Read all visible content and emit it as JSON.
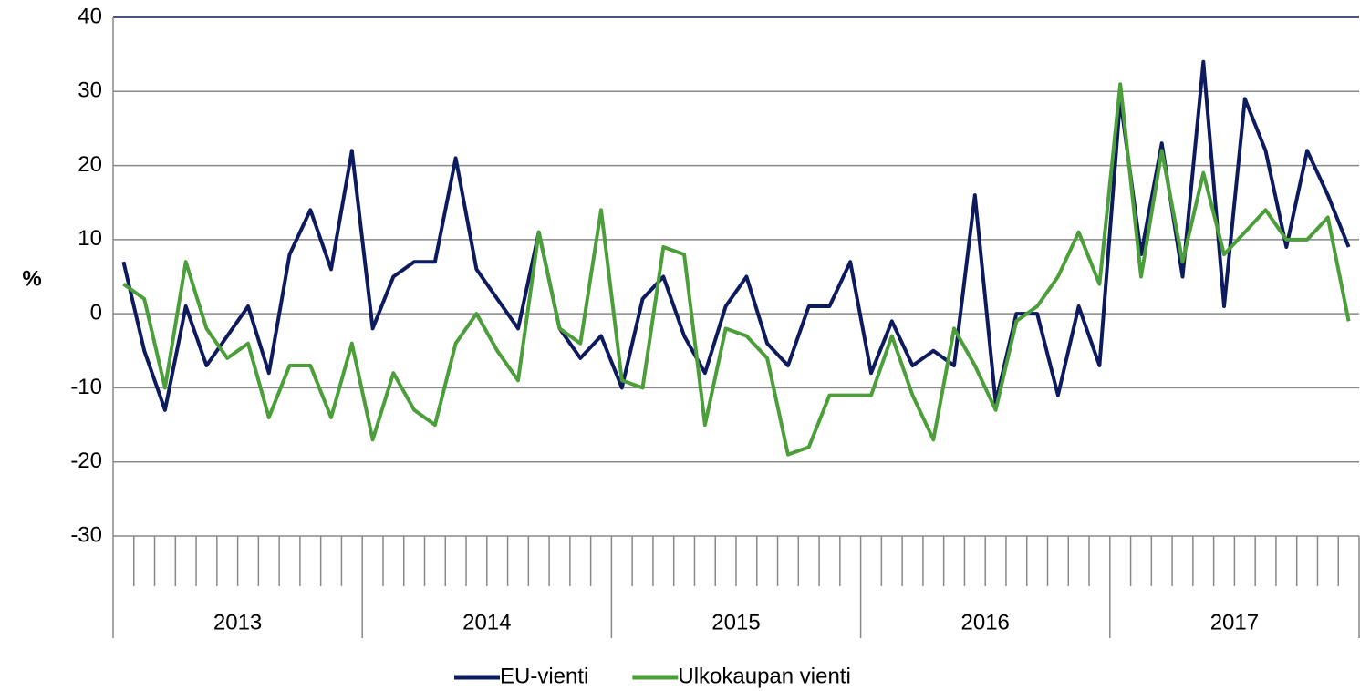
{
  "chart_data": {
    "type": "line",
    "y_label": "%",
    "categories": [
      null,
      null,
      null,
      null,
      null,
      null,
      null,
      null,
      null,
      null,
      null,
      null,
      null,
      null,
      null,
      null,
      null,
      null,
      null,
      null,
      null,
      null,
      null,
      null,
      null,
      null,
      null,
      null,
      null,
      null,
      null,
      null,
      null,
      null,
      null,
      null,
      null,
      null,
      null,
      null,
      null,
      null,
      null,
      null,
      null,
      null,
      null,
      null,
      null,
      null,
      null,
      null,
      null,
      null,
      null,
      null,
      null,
      null,
      null,
      null
    ],
    "year_groups": [
      "2013",
      "2014",
      "2015",
      "2016",
      "2017"
    ],
    "series": [
      {
        "name": "EU-vienti",
        "color": "#0d1a5e",
        "values": [
          7,
          -5,
          -13,
          1,
          -7,
          -3,
          1,
          -8,
          8,
          14,
          6,
          22,
          -2,
          5,
          7,
          7,
          21,
          6,
          2,
          -2,
          11,
          -2,
          -6,
          -3,
          -10,
          2,
          5,
          -3,
          -8,
          1,
          5,
          -4,
          -7,
          1,
          1,
          7,
          -8,
          -1,
          -7,
          -5,
          -7,
          16,
          -12,
          0,
          0,
          -11,
          1,
          -7,
          29,
          8,
          23,
          5,
          34,
          1,
          29,
          22,
          9,
          22,
          16,
          9
        ]
      },
      {
        "name": "Ulkokaupan vienti",
        "color": "#4c9e3a",
        "values": [
          4,
          2,
          -10,
          7,
          -2,
          -6,
          -4,
          -14,
          -7,
          -7,
          -14,
          -4,
          -17,
          -8,
          -13,
          -15,
          -4,
          0,
          -5,
          -9,
          11,
          -2,
          -4,
          14,
          -9,
          -10,
          9,
          8,
          -15,
          -2,
          -3,
          -6,
          -19,
          -18,
          -11,
          -11,
          -11,
          -3,
          -11,
          -17,
          -2,
          -7,
          -13,
          -1,
          1,
          5,
          11,
          4,
          31,
          5,
          22,
          7,
          19,
          8,
          11,
          14,
          10,
          10,
          13,
          -1
        ]
      }
    ],
    "ylim": [
      -30,
      40
    ],
    "yticks": [
      -30,
      -20,
      -10,
      0,
      10,
      20,
      30,
      40
    ],
    "grid": true,
    "legend": "bottom"
  }
}
